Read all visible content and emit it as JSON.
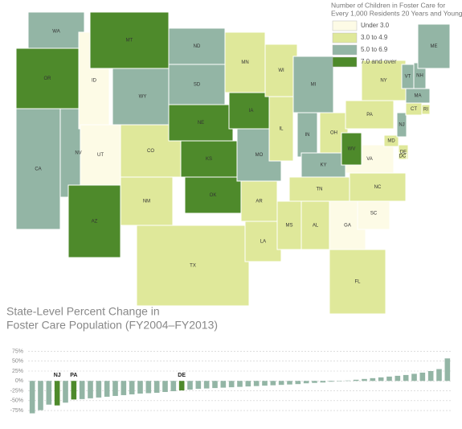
{
  "chart_data": [
    {
      "type": "map",
      "legend_title": [
        "Number of Children in Foster Care for",
        "Every 1,000 Residents 20 Years and Younger"
      ],
      "classes": [
        {
          "name": "Under 3.0",
          "color": "#fdfbe6"
        },
        {
          "name": "3.0 to 4.9",
          "color": "#dfe89a"
        },
        {
          "name": "5.0 to 6.9",
          "color": "#93b5a5"
        },
        {
          "name": "7.0 and over",
          "color": "#4e8a2b"
        }
      ],
      "states": [
        {
          "label": "WA",
          "class": 2
        },
        {
          "label": "OR",
          "class": 3
        },
        {
          "label": "CA",
          "class": 2
        },
        {
          "label": "NV",
          "class": 2
        },
        {
          "label": "ID",
          "class": 0
        },
        {
          "label": "MT",
          "class": 3
        },
        {
          "label": "WY",
          "class": 2
        },
        {
          "label": "UT",
          "class": 0
        },
        {
          "label": "AZ",
          "class": 3
        },
        {
          "label": "CO",
          "class": 1
        },
        {
          "label": "NM",
          "class": 1
        },
        {
          "label": "ND",
          "class": 2
        },
        {
          "label": "SD",
          "class": 2
        },
        {
          "label": "NE",
          "class": 3
        },
        {
          "label": "KS",
          "class": 3
        },
        {
          "label": "OK",
          "class": 3
        },
        {
          "label": "TX",
          "class": 1
        },
        {
          "label": "MN",
          "class": 1
        },
        {
          "label": "IA",
          "class": 3
        },
        {
          "label": "MO",
          "class": 2
        },
        {
          "label": "AR",
          "class": 1
        },
        {
          "label": "LA",
          "class": 1
        },
        {
          "label": "WI",
          "class": 1
        },
        {
          "label": "IL",
          "class": 1
        },
        {
          "label": "MS",
          "class": 1
        },
        {
          "label": "MI",
          "class": 2
        },
        {
          "label": "IN",
          "class": 2
        },
        {
          "label": "KY",
          "class": 2
        },
        {
          "label": "TN",
          "class": 1
        },
        {
          "label": "AL",
          "class": 1
        },
        {
          "label": "OH",
          "class": 1
        },
        {
          "label": "GA",
          "class": 0
        },
        {
          "label": "FL",
          "class": 1
        },
        {
          "label": "SC",
          "class": 0
        },
        {
          "label": "NC",
          "class": 1
        },
        {
          "label": "VA",
          "class": 0
        },
        {
          "label": "WV",
          "class": 3
        },
        {
          "label": "PA",
          "class": 1
        },
        {
          "label": "NY",
          "class": 1
        },
        {
          "label": "MD",
          "class": 1
        },
        {
          "label": "DE",
          "class": 1
        },
        {
          "label": "DC",
          "class": 1
        },
        {
          "label": "NJ",
          "class": 2
        },
        {
          "label": "CT",
          "class": 1
        },
        {
          "label": "RI",
          "class": 1
        },
        {
          "label": "MA",
          "class": 2
        },
        {
          "label": "VT",
          "class": 2
        },
        {
          "label": "NH",
          "class": 2
        },
        {
          "label": "ME",
          "class": 2
        }
      ]
    },
    {
      "type": "bar",
      "title": [
        "State-Level Percent Change in",
        "Foster Care Population (FY2004–FY2013)"
      ],
      "color": "#93b5a5",
      "highlight_color": "#4e8a2b",
      "categories": [
        null,
        null,
        null,
        "NJ",
        null,
        "PA",
        null,
        null,
        null,
        null,
        null,
        null,
        null,
        null,
        null,
        null,
        null,
        null,
        "DE",
        null,
        null,
        null,
        null,
        null,
        null,
        null,
        null,
        null,
        null,
        null,
        null,
        null,
        null,
        null,
        null,
        null,
        null,
        null,
        null,
        null,
        null,
        null,
        null,
        null,
        null,
        null,
        null,
        null,
        null,
        null,
        null
      ],
      "values": [
        -82,
        -74,
        -60,
        -62,
        -55,
        -47,
        -46,
        -44,
        -42,
        -40,
        -38,
        -36,
        -34,
        -32,
        -31,
        -30,
        -28,
        -26,
        -24,
        -22,
        -20,
        -19,
        -18,
        -17,
        -16,
        -15,
        -14,
        -13,
        -12,
        -11,
        -10,
        -9,
        -8,
        -6,
        -5,
        -4,
        -2,
        -1,
        1,
        3,
        5,
        7,
        9,
        11,
        13,
        15,
        18,
        21,
        25,
        30,
        57
      ],
      "ylim": [
        -85,
        80
      ],
      "yticks": [
        {
          "value": 75,
          "label": "75%"
        },
        {
          "value": 50,
          "label": "50%"
        },
        {
          "value": 25,
          "label": "25%"
        },
        {
          "value": 0,
          "label": "0%"
        },
        {
          "value": -25,
          "label": "-25%"
        },
        {
          "value": -50,
          "label": "-50%"
        },
        {
          "value": -75,
          "label": "-75%"
        }
      ],
      "grid": true
    }
  ]
}
